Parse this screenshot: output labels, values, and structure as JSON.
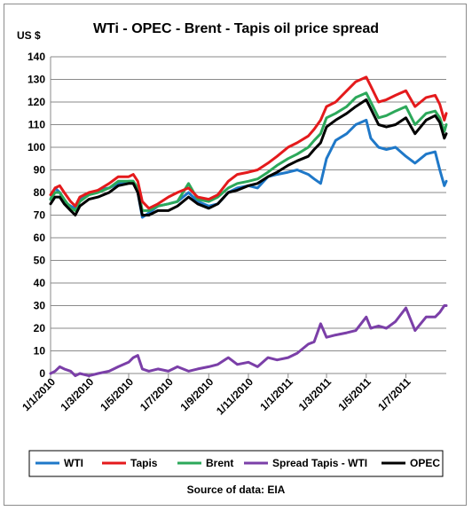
{
  "chart_data": {
    "type": "line",
    "title": "WTi - OPEC - Brent - Tapis oil price spread",
    "ylabel": "US $",
    "ylim": [
      0,
      140
    ],
    "yticks": [
      0,
      10,
      20,
      30,
      40,
      50,
      60,
      70,
      80,
      90,
      100,
      110,
      120,
      130,
      140
    ],
    "xlim": [
      "2010-01-01",
      "2011-09-01"
    ],
    "xticks": [
      "1/1/2010",
      "1/3/2010",
      "1/5/2010",
      "1/7/2010",
      "1/9/2010",
      "1/11/2010",
      "1/1/2011",
      "1/3/2011",
      "1/5/2011",
      "1/7/2011"
    ],
    "xtick_dates": [
      "2010-01-01",
      "2010-03-01",
      "2010-05-01",
      "2010-07-01",
      "2010-09-01",
      "2010-11-01",
      "2011-01-01",
      "2011-03-01",
      "2011-05-01",
      "2011-07-01"
    ],
    "grid": "horizontal",
    "legend_position": "bottom",
    "source": "Source of data: EIA",
    "series": [
      {
        "name": "WTI",
        "color": "#1f78c8",
        "points": [
          [
            "2010-01-01",
            77
          ],
          [
            "2010-01-08",
            82
          ],
          [
            "2010-01-15",
            80
          ],
          [
            "2010-01-22",
            76
          ],
          [
            "2010-02-01",
            74
          ],
          [
            "2010-02-08",
            73
          ],
          [
            "2010-02-15",
            77
          ],
          [
            "2010-03-01",
            79
          ],
          [
            "2010-03-15",
            81
          ],
          [
            "2010-04-01",
            82
          ],
          [
            "2010-04-15",
            84
          ],
          [
            "2010-05-01",
            85
          ],
          [
            "2010-05-08",
            85
          ],
          [
            "2010-05-15",
            80
          ],
          [
            "2010-05-22",
            69
          ],
          [
            "2010-06-01",
            71
          ],
          [
            "2010-06-15",
            74
          ],
          [
            "2010-07-01",
            75
          ],
          [
            "2010-07-15",
            76
          ],
          [
            "2010-08-01",
            80
          ],
          [
            "2010-08-15",
            76
          ],
          [
            "2010-09-01",
            74
          ],
          [
            "2010-09-15",
            75
          ],
          [
            "2010-10-01",
            80
          ],
          [
            "2010-10-15",
            82
          ],
          [
            "2010-11-01",
            83
          ],
          [
            "2010-11-15",
            82
          ],
          [
            "2010-12-01",
            87
          ],
          [
            "2010-12-15",
            88
          ],
          [
            "2011-01-01",
            89
          ],
          [
            "2011-01-15",
            90
          ],
          [
            "2011-02-01",
            88
          ],
          [
            "2011-02-10",
            86
          ],
          [
            "2011-02-20",
            84
          ],
          [
            "2011-03-01",
            95
          ],
          [
            "2011-03-15",
            103
          ],
          [
            "2011-04-01",
            106
          ],
          [
            "2011-04-15",
            110
          ],
          [
            "2011-05-01",
            112
          ],
          [
            "2011-05-08",
            104
          ],
          [
            "2011-05-20",
            100
          ],
          [
            "2011-06-01",
            99
          ],
          [
            "2011-06-15",
            100
          ],
          [
            "2011-07-01",
            96
          ],
          [
            "2011-07-15",
            93
          ],
          [
            "2011-08-01",
            97
          ],
          [
            "2011-08-15",
            98
          ],
          [
            "2011-08-22",
            90
          ],
          [
            "2011-08-29",
            83
          ],
          [
            "2011-09-01",
            85
          ]
        ]
      },
      {
        "name": "Tapis",
        "color": "#e41a1c",
        "points": [
          [
            "2010-01-01",
            79
          ],
          [
            "2010-01-08",
            82
          ],
          [
            "2010-01-15",
            83
          ],
          [
            "2010-01-22",
            80
          ],
          [
            "2010-02-01",
            76
          ],
          [
            "2010-02-08",
            74
          ],
          [
            "2010-02-15",
            78
          ],
          [
            "2010-03-01",
            80
          ],
          [
            "2010-03-15",
            81
          ],
          [
            "2010-04-01",
            84
          ],
          [
            "2010-04-15",
            87
          ],
          [
            "2010-05-01",
            87
          ],
          [
            "2010-05-08",
            88
          ],
          [
            "2010-05-15",
            85
          ],
          [
            "2010-05-22",
            76
          ],
          [
            "2010-06-01",
            73
          ],
          [
            "2010-06-15",
            75
          ],
          [
            "2010-07-01",
            78
          ],
          [
            "2010-07-15",
            80
          ],
          [
            "2010-08-01",
            82
          ],
          [
            "2010-08-15",
            78
          ],
          [
            "2010-09-01",
            77
          ],
          [
            "2010-09-15",
            79
          ],
          [
            "2010-10-01",
            85
          ],
          [
            "2010-10-15",
            88
          ],
          [
            "2010-11-01",
            89
          ],
          [
            "2010-11-15",
            90
          ],
          [
            "2010-12-01",
            93
          ],
          [
            "2010-12-15",
            96
          ],
          [
            "2011-01-01",
            100
          ],
          [
            "2011-01-15",
            102
          ],
          [
            "2011-02-01",
            105
          ],
          [
            "2011-02-10",
            108
          ],
          [
            "2011-02-20",
            112
          ],
          [
            "2011-03-01",
            118
          ],
          [
            "2011-03-15",
            120
          ],
          [
            "2011-04-01",
            125
          ],
          [
            "2011-04-15",
            129
          ],
          [
            "2011-05-01",
            131
          ],
          [
            "2011-05-08",
            127
          ],
          [
            "2011-05-20",
            120
          ],
          [
            "2011-06-01",
            121
          ],
          [
            "2011-06-15",
            123
          ],
          [
            "2011-07-01",
            125
          ],
          [
            "2011-07-15",
            118
          ],
          [
            "2011-08-01",
            122
          ],
          [
            "2011-08-15",
            123
          ],
          [
            "2011-08-22",
            119
          ],
          [
            "2011-08-29",
            112
          ],
          [
            "2011-09-01",
            115
          ]
        ]
      },
      {
        "name": "Brent",
        "color": "#2ca85a",
        "points": [
          [
            "2010-01-01",
            77
          ],
          [
            "2010-01-08",
            80
          ],
          [
            "2010-01-15",
            80
          ],
          [
            "2010-01-22",
            77
          ],
          [
            "2010-02-01",
            73
          ],
          [
            "2010-02-08",
            72
          ],
          [
            "2010-02-15",
            76
          ],
          [
            "2010-03-01",
            79
          ],
          [
            "2010-03-15",
            80
          ],
          [
            "2010-04-01",
            82
          ],
          [
            "2010-04-15",
            85
          ],
          [
            "2010-05-01",
            85
          ],
          [
            "2010-05-08",
            85
          ],
          [
            "2010-05-15",
            82
          ],
          [
            "2010-05-22",
            72
          ],
          [
            "2010-06-01",
            72
          ],
          [
            "2010-06-15",
            74
          ],
          [
            "2010-07-01",
            75
          ],
          [
            "2010-07-15",
            76
          ],
          [
            "2010-08-01",
            84
          ],
          [
            "2010-08-15",
            77
          ],
          [
            "2010-09-01",
            76
          ],
          [
            "2010-09-15",
            78
          ],
          [
            "2010-10-01",
            82
          ],
          [
            "2010-10-15",
            84
          ],
          [
            "2010-11-01",
            85
          ],
          [
            "2010-11-15",
            86
          ],
          [
            "2010-12-01",
            89
          ],
          [
            "2010-12-15",
            92
          ],
          [
            "2011-01-01",
            95
          ],
          [
            "2011-01-15",
            97
          ],
          [
            "2011-02-01",
            100
          ],
          [
            "2011-02-10",
            103
          ],
          [
            "2011-02-20",
            106
          ],
          [
            "2011-03-01",
            113
          ],
          [
            "2011-03-15",
            115
          ],
          [
            "2011-04-01",
            118
          ],
          [
            "2011-04-15",
            122
          ],
          [
            "2011-05-01",
            124
          ],
          [
            "2011-05-08",
            120
          ],
          [
            "2011-05-20",
            113
          ],
          [
            "2011-06-01",
            114
          ],
          [
            "2011-06-15",
            116
          ],
          [
            "2011-07-01",
            118
          ],
          [
            "2011-07-15",
            110
          ],
          [
            "2011-08-01",
            115
          ],
          [
            "2011-08-15",
            116
          ],
          [
            "2011-08-22",
            113
          ],
          [
            "2011-08-29",
            107
          ],
          [
            "2011-09-01",
            110
          ]
        ]
      },
      {
        "name": "Spread Tapis - WTI",
        "color": "#7b3fa8",
        "points": [
          [
            "2010-01-01",
            0
          ],
          [
            "2010-01-08",
            1
          ],
          [
            "2010-01-15",
            3
          ],
          [
            "2010-01-22",
            2
          ],
          [
            "2010-02-01",
            1
          ],
          [
            "2010-02-08",
            -1
          ],
          [
            "2010-02-15",
            0
          ],
          [
            "2010-03-01",
            -1
          ],
          [
            "2010-03-15",
            0
          ],
          [
            "2010-04-01",
            1
          ],
          [
            "2010-04-15",
            3
          ],
          [
            "2010-05-01",
            5
          ],
          [
            "2010-05-08",
            7
          ],
          [
            "2010-05-15",
            8
          ],
          [
            "2010-05-22",
            2
          ],
          [
            "2010-06-01",
            1
          ],
          [
            "2010-06-15",
            2
          ],
          [
            "2010-07-01",
            1
          ],
          [
            "2010-07-15",
            3
          ],
          [
            "2010-08-01",
            1
          ],
          [
            "2010-08-15",
            2
          ],
          [
            "2010-09-01",
            3
          ],
          [
            "2010-09-15",
            4
          ],
          [
            "2010-10-01",
            7
          ],
          [
            "2010-10-15",
            4
          ],
          [
            "2010-11-01",
            5
          ],
          [
            "2010-11-15",
            3
          ],
          [
            "2010-12-01",
            7
          ],
          [
            "2010-12-15",
            6
          ],
          [
            "2011-01-01",
            7
          ],
          [
            "2011-01-15",
            9
          ],
          [
            "2011-02-01",
            13
          ],
          [
            "2011-02-10",
            14
          ],
          [
            "2011-02-20",
            22
          ],
          [
            "2011-03-01",
            16
          ],
          [
            "2011-03-15",
            17
          ],
          [
            "2011-04-01",
            18
          ],
          [
            "2011-04-15",
            19
          ],
          [
            "2011-05-01",
            25
          ],
          [
            "2011-05-08",
            20
          ],
          [
            "2011-05-20",
            21
          ],
          [
            "2011-06-01",
            20
          ],
          [
            "2011-06-15",
            23
          ],
          [
            "2011-07-01",
            29
          ],
          [
            "2011-07-15",
            19
          ],
          [
            "2011-08-01",
            25
          ],
          [
            "2011-08-15",
            25
          ],
          [
            "2011-08-22",
            27
          ],
          [
            "2011-08-29",
            30
          ],
          [
            "2011-09-01",
            30
          ]
        ]
      },
      {
        "name": "OPEC",
        "color": "#000000",
        "points": [
          [
            "2010-01-01",
            75
          ],
          [
            "2010-01-08",
            78
          ],
          [
            "2010-01-15",
            78
          ],
          [
            "2010-01-22",
            75
          ],
          [
            "2010-02-01",
            72
          ],
          [
            "2010-02-08",
            70
          ],
          [
            "2010-02-15",
            74
          ],
          [
            "2010-03-01",
            77
          ],
          [
            "2010-03-15",
            78
          ],
          [
            "2010-04-01",
            80
          ],
          [
            "2010-04-15",
            83
          ],
          [
            "2010-05-01",
            84
          ],
          [
            "2010-05-08",
            84
          ],
          [
            "2010-05-15",
            80
          ],
          [
            "2010-05-22",
            70
          ],
          [
            "2010-06-01",
            70
          ],
          [
            "2010-06-15",
            72
          ],
          [
            "2010-07-01",
            72
          ],
          [
            "2010-07-15",
            74
          ],
          [
            "2010-08-01",
            78
          ],
          [
            "2010-08-15",
            75
          ],
          [
            "2010-09-01",
            73
          ],
          [
            "2010-09-15",
            75
          ],
          [
            "2010-10-01",
            80
          ],
          [
            "2010-10-15",
            81
          ],
          [
            "2010-11-01",
            83
          ],
          [
            "2010-11-15",
            84
          ],
          [
            "2010-12-01",
            87
          ],
          [
            "2010-12-15",
            89
          ],
          [
            "2011-01-01",
            92
          ],
          [
            "2011-01-15",
            94
          ],
          [
            "2011-02-01",
            96
          ],
          [
            "2011-02-10",
            99
          ],
          [
            "2011-02-20",
            102
          ],
          [
            "2011-03-01",
            109
          ],
          [
            "2011-03-15",
            112
          ],
          [
            "2011-04-01",
            115
          ],
          [
            "2011-04-15",
            118
          ],
          [
            "2011-05-01",
            121
          ],
          [
            "2011-05-08",
            117
          ],
          [
            "2011-05-20",
            110
          ],
          [
            "2011-06-01",
            109
          ],
          [
            "2011-06-15",
            110
          ],
          [
            "2011-07-01",
            113
          ],
          [
            "2011-07-15",
            106
          ],
          [
            "2011-08-01",
            112
          ],
          [
            "2011-08-15",
            114
          ],
          [
            "2011-08-22",
            111
          ],
          [
            "2011-08-29",
            104
          ],
          [
            "2011-09-01",
            106
          ]
        ]
      }
    ]
  }
}
